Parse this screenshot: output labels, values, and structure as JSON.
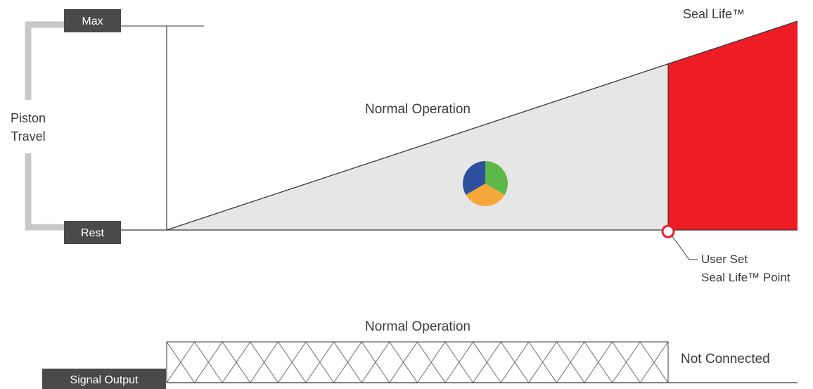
{
  "labels": {
    "max": "Max",
    "rest": "Rest",
    "piston_line1": "Piston",
    "piston_line2": "Travel",
    "normal_operation_top": "Normal Operation",
    "seal_life_top": "Seal Life™",
    "user_set_line1": "User Set",
    "user_set_line2": "Seal Life™ Point",
    "normal_operation_bottom": "Normal Operation",
    "not_connected": "Not Connected",
    "signal_output": "Signal Output"
  },
  "colors": {
    "label_box": "#4a4a4a",
    "bracket": "#c8c8c8",
    "normal_region": "#e6e6e6",
    "seal_life_region": "#ee1c24",
    "pie_blue": "#2e4f9e",
    "pie_green": "#5db84a",
    "pie_orange": "#f5a83a",
    "line": "#3a3a3a"
  },
  "icons": {
    "status_pie": "tri-color-pie-icon",
    "seal_point_marker": "open-circle-marker"
  }
}
